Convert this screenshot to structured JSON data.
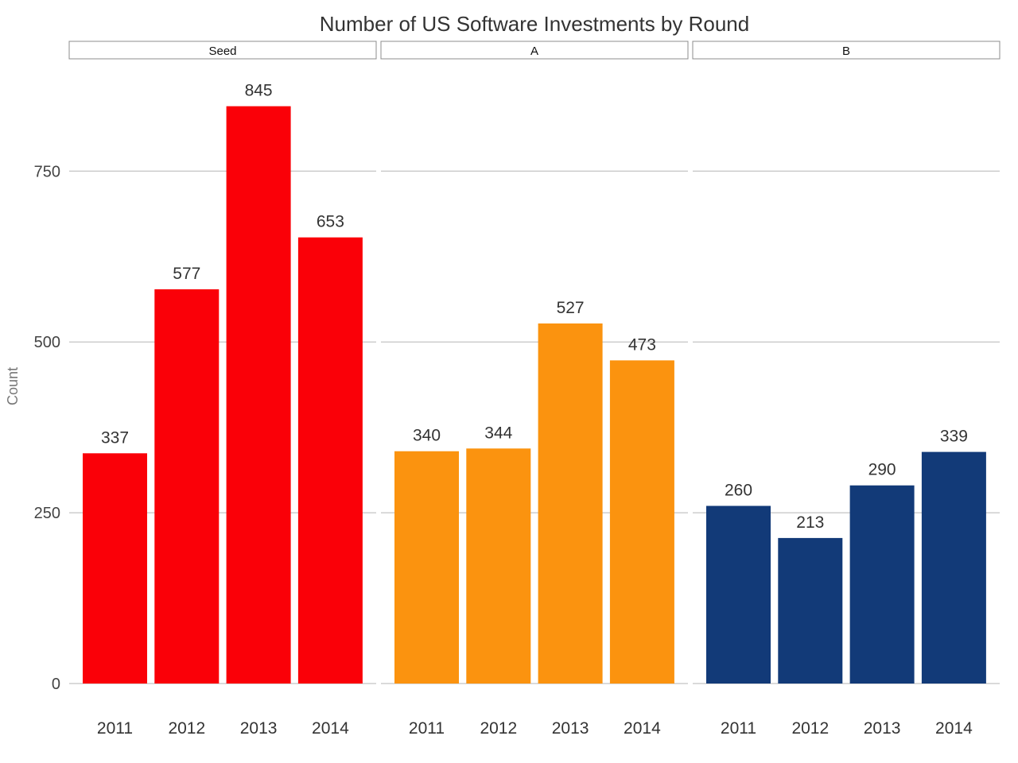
{
  "chart_data": {
    "type": "bar",
    "title": "Number of US Software Investments by Round",
    "ylabel": "Count",
    "xlabel": "",
    "ylim": [
      0,
      900
    ],
    "yticks": [
      0,
      250,
      500,
      750
    ],
    "grid": true,
    "categories": [
      "2011",
      "2012",
      "2013",
      "2014"
    ],
    "panels": [
      {
        "name": "Seed",
        "color": "#fa0008",
        "values": [
          337,
          577,
          845,
          653
        ]
      },
      {
        "name": "A",
        "color": "#fb930f",
        "values": [
          340,
          344,
          527,
          473
        ]
      },
      {
        "name": "B",
        "color": "#123a78",
        "values": [
          260,
          213,
          290,
          339
        ]
      }
    ]
  }
}
